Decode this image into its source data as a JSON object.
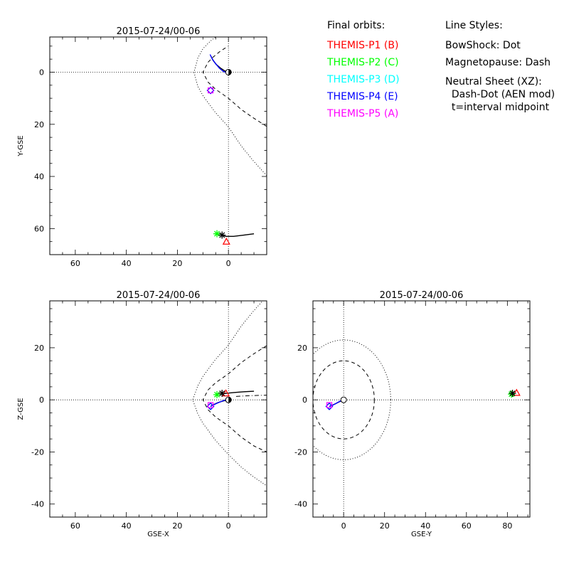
{
  "legend": {
    "orbits_title": "Final orbits:",
    "orbits": [
      {
        "label": "THEMIS-P1 (B)",
        "color": "#ff0000"
      },
      {
        "label": "THEMIS-P2 (C)",
        "color": "#00ff00"
      },
      {
        "label": "THEMIS-P3 (D)",
        "color": "#00ffff"
      },
      {
        "label": "THEMIS-P4 (E)",
        "color": "#0000ff"
      },
      {
        "label": "THEMIS-P5 (A)",
        "color": "#ff00ff"
      }
    ],
    "styles_title": "Line Styles:",
    "styles": [
      "BowShock: Dot",
      "Magnetopause: Dash",
      "Neutral Sheet (XZ):",
      "  Dash-Dot (AEN mod)",
      "  t=interval midpoint"
    ]
  },
  "chart_data": [
    {
      "type": "line",
      "panel": "XY",
      "title": "2015-07-24/00-06",
      "xlabel": "",
      "ylabel": "Y-GSE",
      "xlim": [
        70,
        -15
      ],
      "ylim": [
        -13.5,
        70
      ],
      "x_reversed": true,
      "y_reversed": true,
      "xticks": [
        60,
        40,
        20,
        0
      ],
      "yticks": [
        0,
        20,
        40,
        60
      ],
      "boundaries": {
        "bowshock": [
          [
            -15,
            39.7
          ],
          [
            -10,
            34.3
          ],
          [
            -5,
            28.3
          ],
          [
            0,
            21
          ],
          [
            5,
            15.6
          ],
          [
            10,
            9
          ],
          [
            12,
            5.4
          ],
          [
            13.5,
            0
          ],
          [
            12,
            -5.4
          ],
          [
            10,
            -9
          ],
          [
            7,
            -12
          ],
          [
            5,
            -13.5
          ]
        ],
        "magnetopause": [
          [
            -15,
            20.8
          ],
          [
            -10,
            17.7
          ],
          [
            -5,
            14.3
          ],
          [
            0,
            10
          ],
          [
            5,
            6.6
          ],
          [
            8,
            3.8
          ],
          [
            10,
            0
          ],
          [
            8,
            -3.8
          ],
          [
            6,
            -5.8
          ],
          [
            5,
            -6.6
          ],
          [
            3,
            -8.2
          ],
          [
            0,
            -10
          ]
        ]
      },
      "series": [
        {
          "color": "#000000",
          "points": [
            [
              0,
              0
            ],
            [
              1.5,
              -0.5
            ],
            [
              3,
              -1.5
            ],
            [
              4.8,
              -3
            ],
            [
              6,
              -4.5
            ],
            [
              6.8,
              -6
            ]
          ]
        },
        {
          "color": "#0000ff",
          "points": [
            [
              0.5,
              0.3
            ],
            [
              2,
              -0.3
            ],
            [
              3.5,
              -1.5
            ],
            [
              5,
              -3.2
            ],
            [
              6.3,
              -5
            ],
            [
              7.2,
              -6.8
            ]
          ]
        },
        {
          "color": "#000000",
          "points": [
            [
              -10,
              62
            ],
            [
              -6,
              62.5
            ],
            [
              -2,
              63
            ],
            [
              1,
              63
            ],
            [
              2.5,
              62.5
            ]
          ]
        }
      ],
      "markers": [
        {
          "name": "P1",
          "shape": "triangle",
          "color": "#ff0000",
          "x": 0.8,
          "y": 65
        },
        {
          "name": "P2",
          "shape": "star",
          "color": "#00ff00",
          "x": 4.5,
          "y": 62
        },
        {
          "name": "P3",
          "shape": "diamond",
          "color": "#00ffff",
          "x": 7,
          "y": 7
        },
        {
          "name": "P4",
          "shape": "diamond",
          "color": "#0000ff",
          "x": 7,
          "y": 7
        },
        {
          "name": "P5",
          "shape": "square",
          "color": "#ff00ff",
          "x": 7,
          "y": 7
        },
        {
          "name": "P5-trace-end",
          "shape": "star",
          "color": "#000000",
          "x": 2.5,
          "y": 62.5
        }
      ]
    },
    {
      "type": "line",
      "panel": "XZ",
      "title": "2015-07-24/00-06",
      "xlabel": "GSE-X",
      "ylabel": "Z-GSE",
      "xlim": [
        70,
        -15
      ],
      "ylim": [
        -45,
        38
      ],
      "x_reversed": true,
      "xticks": [
        60,
        40,
        20,
        0
      ],
      "yticks": [
        -40,
        -20,
        0,
        20
      ],
      "boundaries": {
        "bowshock": [
          [
            -15,
            39.7
          ],
          [
            -10,
            34.3
          ],
          [
            -5,
            28.3
          ],
          [
            0,
            21
          ],
          [
            5,
            15.6
          ],
          [
            10,
            9
          ],
          [
            12,
            5.4
          ],
          [
            14,
            0
          ],
          [
            12,
            -5.4
          ],
          [
            10,
            -9
          ],
          [
            5,
            -15.6
          ],
          [
            0,
            -21
          ],
          [
            -5,
            -25.8
          ],
          [
            -10,
            -29.7
          ],
          [
            -15,
            -33
          ]
        ],
        "magnetopause": [
          [
            -15,
            20.8
          ],
          [
            -10,
            17.7
          ],
          [
            -5,
            14.3
          ],
          [
            0,
            10
          ],
          [
            5,
            6.6
          ],
          [
            8,
            3.8
          ],
          [
            10,
            0
          ],
          [
            8,
            -3.8
          ],
          [
            5,
            -6.6
          ],
          [
            0,
            -10
          ],
          [
            -5,
            -14.3
          ],
          [
            -10,
            -17.7
          ],
          [
            -15,
            -20
          ]
        ],
        "neutral_sheet": [
          [
            -3,
            1.3
          ],
          [
            -8,
            1.6
          ],
          [
            -15,
            1.8
          ]
        ]
      },
      "series": [
        {
          "color": "#000000",
          "points": [
            [
              -10,
              3.3
            ],
            [
              -6,
              3.1
            ],
            [
              -2,
              2.8
            ],
            [
              1,
              2.5
            ],
            [
              2.5,
              2.3
            ]
          ]
        },
        {
          "color": "#000000",
          "points": [
            [
              0,
              0
            ],
            [
              2,
              -0.4
            ],
            [
              4,
              -1
            ],
            [
              6,
              -1.9
            ],
            [
              7,
              -2.5
            ]
          ]
        },
        {
          "color": "#0000ff",
          "points": [
            [
              0.5,
              0.2
            ],
            [
              2.5,
              -0.5
            ],
            [
              4.5,
              -1.3
            ],
            [
              6.2,
              -2.1
            ],
            [
              7,
              -2.5
            ]
          ]
        }
      ],
      "markers": [
        {
          "name": "P1",
          "shape": "triangle",
          "color": "#ff0000",
          "x": 1,
          "y": 2.5
        },
        {
          "name": "P2",
          "shape": "star",
          "color": "#00ff00",
          "x": 4.5,
          "y": 2
        },
        {
          "name": "P3",
          "shape": "diamond",
          "color": "#00ffff",
          "x": 7,
          "y": -2.5
        },
        {
          "name": "P4",
          "shape": "diamond",
          "color": "#0000ff",
          "x": 7,
          "y": -2.5
        },
        {
          "name": "P5",
          "shape": "square",
          "color": "#ff00ff",
          "x": 7,
          "y": -2
        },
        {
          "name": "P5-trace-end",
          "shape": "star",
          "color": "#000000",
          "x": 2.5,
          "y": 2.5
        }
      ]
    },
    {
      "type": "line",
      "panel": "YZ",
      "title": "2015-07-24/00-06",
      "xlabel": "GSE-Y",
      "ylabel": "",
      "xlim": [
        -15,
        91
      ],
      "ylim": [
        -45,
        38
      ],
      "xticks": [
        0,
        20,
        40,
        60,
        80
      ],
      "yticks": [
        -40,
        -20,
        0,
        20
      ],
      "circles": [
        {
          "style": "dot",
          "r": 23
        },
        {
          "style": "dash",
          "r": 15
        }
      ],
      "series": [
        {
          "color": "#000000",
          "points": [
            [
              0,
              0
            ],
            [
              -2,
              -0.7
            ],
            [
              -4,
              -1.5
            ],
            [
              -6,
              -2.2
            ],
            [
              -7,
              -2.5
            ]
          ]
        },
        {
          "color": "#0000ff",
          "points": [
            [
              0.3,
              0.2
            ],
            [
              -2,
              -0.6
            ],
            [
              -4.2,
              -1.6
            ],
            [
              -6,
              -2.3
            ],
            [
              -7,
              -2.5
            ]
          ]
        }
      ],
      "markers": [
        {
          "name": "P1",
          "shape": "triangle",
          "color": "#ff0000",
          "x": 84.5,
          "y": 2.7
        },
        {
          "name": "P2",
          "shape": "star",
          "color": "#00ff00",
          "x": 82,
          "y": 2.2
        },
        {
          "name": "P3",
          "shape": "diamond",
          "color": "#00ffff",
          "x": -7,
          "y": -2.5
        },
        {
          "name": "P4",
          "shape": "diamond",
          "color": "#0000ff",
          "x": -7,
          "y": -2.5
        },
        {
          "name": "P5",
          "shape": "square",
          "color": "#ff00ff",
          "x": -7,
          "y": -2
        },
        {
          "name": "P5-trace-end",
          "shape": "star",
          "color": "#000000",
          "x": 82.5,
          "y": 2.5
        }
      ]
    }
  ]
}
